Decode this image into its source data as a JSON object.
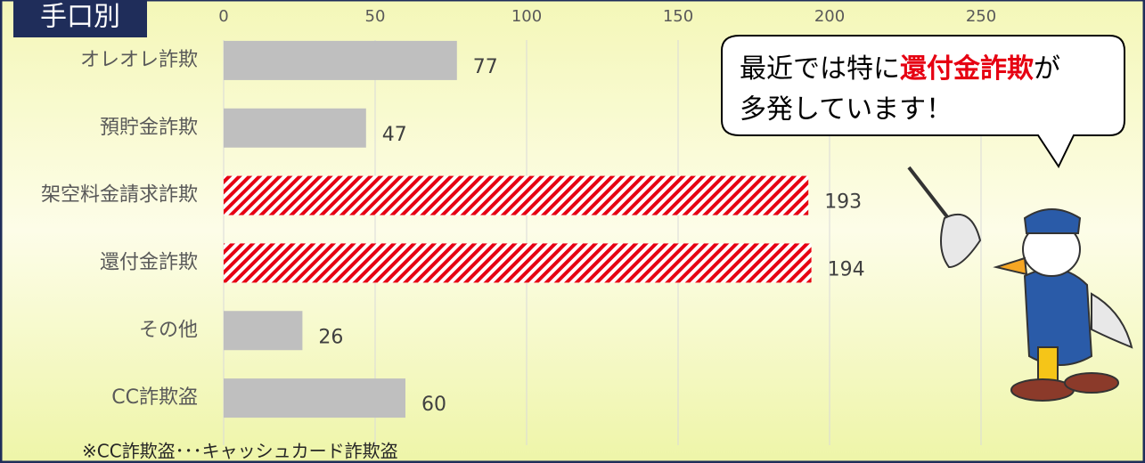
{
  "chart_data": {
    "type": "hbar",
    "title": "手口別",
    "categories": [
      "オレオレ詐欺",
      "預貯金詐欺",
      "架空料金請求詐欺",
      "還付金詐欺",
      "その他",
      "CC詐欺盗"
    ],
    "values": [
      77,
      47,
      193,
      194,
      26,
      60
    ],
    "colors": [
      "#bfbfbf",
      "#bfbfbf",
      "#e60012",
      "#e60012",
      "#bfbfbf",
      "#bfbfbf"
    ],
    "hatched": [
      false,
      false,
      true,
      true,
      false,
      false
    ],
    "xlim": [
      0,
      280
    ],
    "xticks": [
      0,
      50,
      100,
      150,
      200,
      250
    ],
    "grid": true,
    "annotation": {
      "line1": [
        "最近では特に",
        "還付金詐欺",
        "が"
      ],
      "line2": "多発しています！"
    },
    "footnote": "※CC詐欺盗･･･キャッシュカード詐欺盗"
  }
}
